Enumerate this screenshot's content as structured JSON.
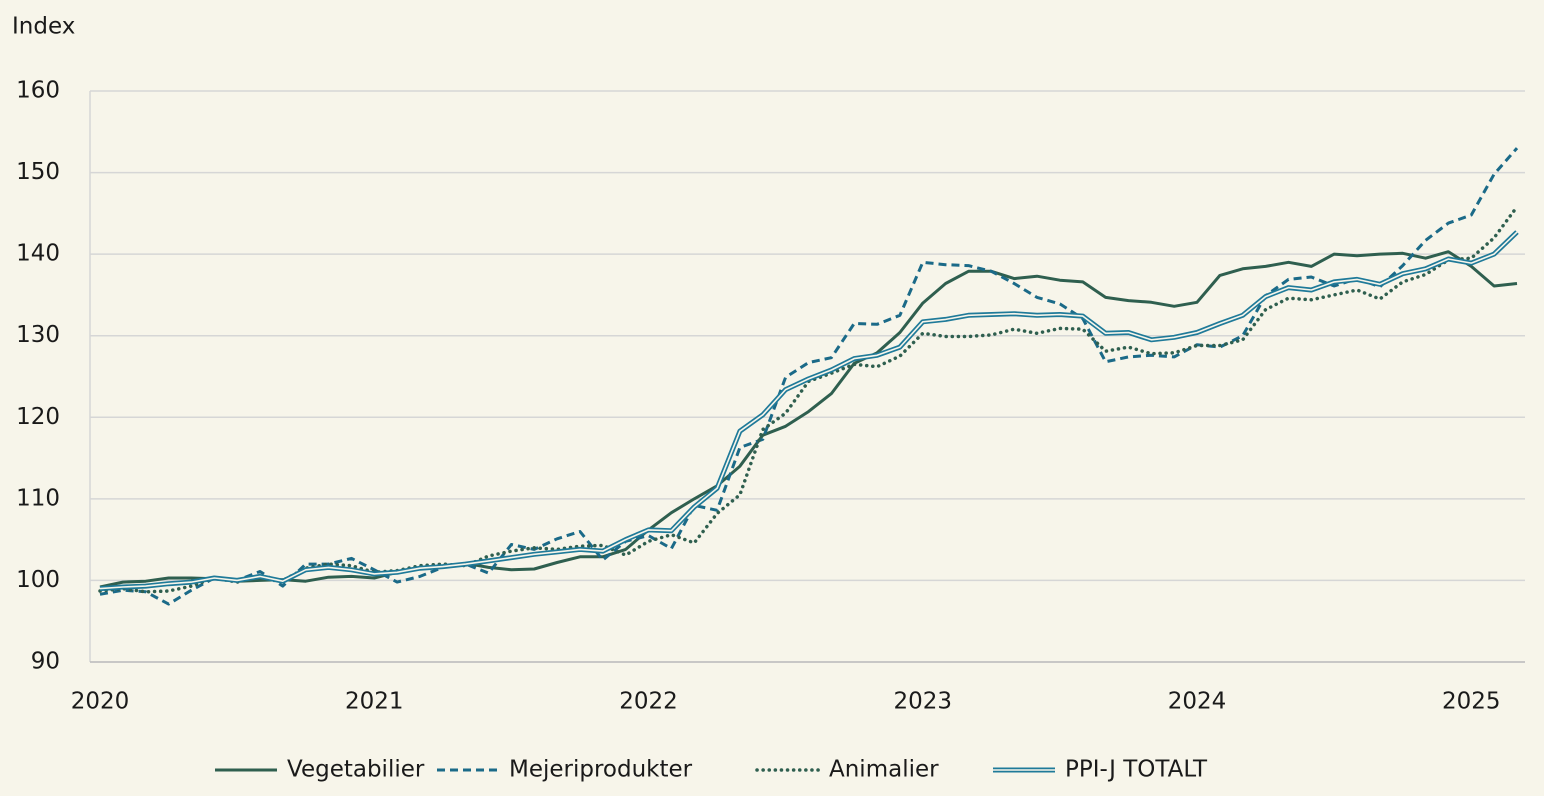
{
  "chart_data": {
    "type": "line",
    "y_label": "Index",
    "categories": [
      "2020",
      null,
      null,
      null,
      null,
      null,
      null,
      null,
      null,
      null,
      null,
      null,
      "2021",
      null,
      null,
      null,
      null,
      null,
      null,
      null,
      null,
      null,
      null,
      null,
      "2022",
      null,
      null,
      null,
      null,
      null,
      null,
      null,
      null,
      null,
      null,
      null,
      "2023",
      null,
      null,
      null,
      null,
      null,
      null,
      null,
      null,
      null,
      null,
      null,
      "2024",
      null,
      null,
      null,
      null,
      null,
      null,
      null,
      null,
      null,
      null,
      null,
      "2025",
      null,
      null
    ],
    "ylim": [
      90,
      160
    ],
    "yticks": [
      90,
      100,
      110,
      120,
      130,
      140,
      150,
      160
    ],
    "grid": true,
    "legend": "bottom",
    "series": [
      {
        "name": "Vegetabilier",
        "color": "#2f5f4f",
        "style": "solid",
        "values": [
          99.2,
          99.8,
          99.9,
          100.3,
          100.3,
          100.2,
          99.9,
          100.0,
          100.1,
          99.9,
          100.4,
          100.5,
          100.3,
          101.0,
          101.5,
          101.7,
          102.1,
          101.6,
          101.3,
          101.4,
          102.2,
          102.9,
          102.9,
          103.8,
          106.2,
          108.3,
          110.0,
          111.6,
          114.0,
          117.8,
          118.9,
          120.7,
          122.9,
          126.6,
          127.9,
          130.4,
          134.0,
          136.4,
          137.9,
          137.9,
          137.0,
          137.3,
          136.8,
          136.6,
          134.7,
          134.3,
          134.1,
          133.6,
          134.1,
          137.4,
          138.2,
          138.5,
          139.0,
          138.5,
          140.0,
          139.8,
          140.0,
          140.1,
          139.5,
          140.3,
          138.5,
          136.1,
          136.4
        ]
      },
      {
        "name": "Mejeriprodukter",
        "color": "#1b6a88",
        "style": "dashed",
        "values": [
          98.3,
          98.8,
          98.6,
          97.1,
          98.8,
          100.3,
          100.0,
          101.1,
          99.3,
          102.0,
          102.0,
          102.7,
          101.3,
          99.8,
          100.5,
          101.6,
          102.0,
          100.9,
          104.4,
          103.8,
          105.1,
          106.0,
          102.5,
          104.8,
          105.5,
          103.9,
          109.2,
          108.6,
          116.3,
          117.3,
          124.9,
          126.7,
          127.3,
          131.5,
          131.4,
          132.5,
          139.0,
          138.7,
          138.6,
          137.9,
          136.4,
          134.7,
          133.9,
          132.1,
          126.8,
          127.4,
          127.6,
          127.4,
          128.9,
          128.6,
          130.0,
          134.9,
          136.9,
          137.2,
          136.1,
          137.0,
          136.0,
          138.6,
          141.7,
          143.8,
          144.8,
          149.8,
          153.0
        ]
      },
      {
        "name": "Animalier",
        "color": "#2f5f4f",
        "style": "dotted",
        "values": [
          98.7,
          99.0,
          98.6,
          98.7,
          99.3,
          100.3,
          99.8,
          100.4,
          100.0,
          101.5,
          102.0,
          101.8,
          101.0,
          101.2,
          101.8,
          102.0,
          101.8,
          103.0,
          103.6,
          104.0,
          103.8,
          104.2,
          104.3,
          103.1,
          104.8,
          105.6,
          104.6,
          108.2,
          110.5,
          118.5,
          120.5,
          124.4,
          125.4,
          126.5,
          126.2,
          127.5,
          130.3,
          129.9,
          129.9,
          130.1,
          130.8,
          130.3,
          130.9,
          130.8,
          128.1,
          128.6,
          127.8,
          127.9,
          128.8,
          128.8,
          129.5,
          133.2,
          134.6,
          134.4,
          135.0,
          135.6,
          134.5,
          136.6,
          137.5,
          139.3,
          139.5,
          142.0,
          145.8
        ]
      },
      {
        "name": "PPI-J TOTALT",
        "color": "#1f7a99",
        "style": "double",
        "values": [
          99.0,
          99.2,
          99.3,
          99.6,
          99.8,
          100.3,
          100.0,
          100.5,
          99.9,
          101.3,
          101.6,
          101.3,
          100.8,
          101.0,
          101.5,
          101.7,
          102.0,
          102.4,
          102.8,
          103.2,
          103.5,
          103.8,
          103.6,
          105.0,
          106.2,
          106.1,
          109.0,
          111.3,
          118.3,
          120.3,
          123.4,
          124.7,
          125.8,
          127.2,
          127.6,
          128.6,
          131.7,
          132.0,
          132.5,
          132.6,
          132.7,
          132.5,
          132.6,
          132.4,
          130.3,
          130.4,
          129.5,
          129.8,
          130.4,
          131.5,
          132.5,
          134.8,
          135.9,
          135.6,
          136.6,
          136.9,
          136.3,
          137.6,
          138.2,
          139.4,
          138.9,
          140.0,
          142.7
        ]
      }
    ]
  }
}
